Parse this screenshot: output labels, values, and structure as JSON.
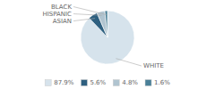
{
  "chart_data": {
    "type": "pie",
    "categories": [
      "WHITE",
      "ASIAN",
      "HISPANIC",
      "BLACK"
    ],
    "values": [
      87.9,
      5.6,
      4.8,
      1.6
    ],
    "value_labels": [
      "87.9%",
      "5.6%",
      "4.8%",
      "1.6%"
    ],
    "colors": [
      "#d6e3ec",
      "#2e6080",
      "#b0c4d0",
      "#4a8098"
    ],
    "legend": "bottom"
  }
}
